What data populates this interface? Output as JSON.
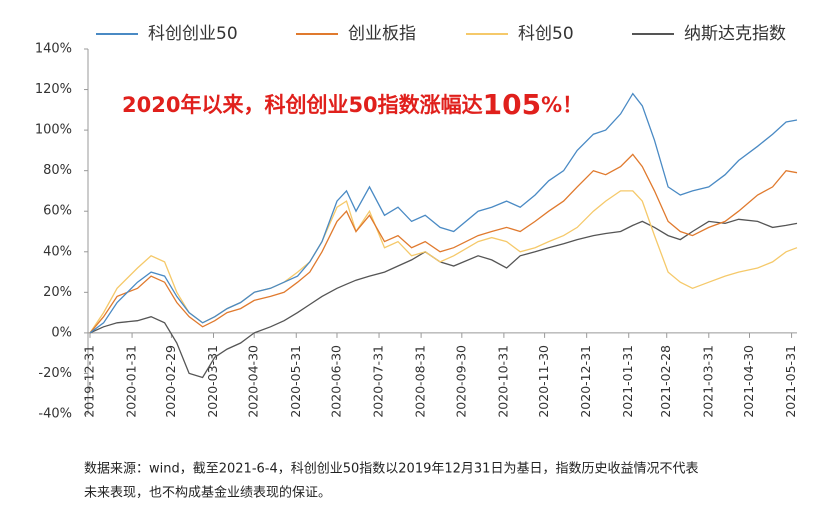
{
  "chart_data": {
    "type": "line",
    "legend_position": "top",
    "annotation": {
      "text": "2020年以来，科创创业50指数涨幅达",
      "highlight": "105",
      "suffix": "%！",
      "color": "#e0201c"
    },
    "footnote": [
      "数据来源：wind，截至2021-6-4，科创创业50指数以2019年12月31日为基日，指数历史收益情况不代表",
      "未来表现，也不构成基金业绩表现的保证。"
    ],
    "x": [
      "2019-12-31",
      "2020-01-10",
      "2020-01-20",
      "2020-02-04",
      "2020-02-14",
      "2020-02-24",
      "2020-03-04",
      "2020-03-13",
      "2020-03-23",
      "2020-04-01",
      "2020-04-10",
      "2020-04-20",
      "2020-04-30",
      "2020-05-12",
      "2020-05-22",
      "2020-06-01",
      "2020-06-10",
      "2020-06-19",
      "2020-06-30",
      "2020-07-07",
      "2020-07-14",
      "2020-07-24",
      "2020-08-04",
      "2020-08-14",
      "2020-08-24",
      "2020-09-03",
      "2020-09-14",
      "2020-09-24",
      "2020-10-12",
      "2020-10-22",
      "2020-11-02",
      "2020-11-12",
      "2020-11-23",
      "2020-12-03",
      "2020-12-14",
      "2020-12-24",
      "2021-01-05",
      "2021-01-14",
      "2021-01-25",
      "2021-02-03",
      "2021-02-10",
      "2021-02-19",
      "2021-03-01",
      "2021-03-10",
      "2021-03-19",
      "2021-03-31",
      "2021-04-12",
      "2021-04-22",
      "2021-05-06",
      "2021-05-17",
      "2021-05-27",
      "2021-06-04"
    ],
    "xlim": [
      "2019-12-31",
      "2021-06-04"
    ],
    "xticks": [
      "2019-12-31",
      "2020-01-31",
      "2020-02-29",
      "2020-03-31",
      "2020-04-30",
      "2020-05-31",
      "2020-06-30",
      "2020-07-31",
      "2020-08-31",
      "2020-09-30",
      "2020-10-31",
      "2020-11-30",
      "2020-12-31",
      "2021-01-31",
      "2021-02-28",
      "2021-03-31",
      "2021-04-30",
      "2021-05-31"
    ],
    "ylim": [
      -40,
      140
    ],
    "yticks": [
      {
        "value": -40,
        "label": "-40%"
      },
      {
        "value": -20,
        "label": "-20%"
      },
      {
        "value": 0,
        "label": "0%"
      },
      {
        "value": 20,
        "label": "20%"
      },
      {
        "value": 40,
        "label": "40%"
      },
      {
        "value": 60,
        "label": "60%"
      },
      {
        "value": 80,
        "label": "80%"
      },
      {
        "value": 100,
        "label": "100%"
      },
      {
        "value": 120,
        "label": "120%"
      },
      {
        "value": 140,
        "label": "140%"
      }
    ],
    "series": [
      {
        "name": "科创创业50",
        "color": "#4a8ac4",
        "values": [
          0,
          5,
          15,
          25,
          30,
          28,
          18,
          10,
          5,
          8,
          12,
          15,
          20,
          22,
          25,
          28,
          35,
          45,
          65,
          70,
          60,
          72,
          58,
          62,
          55,
          58,
          52,
          50,
          60,
          62,
          65,
          62,
          68,
          75,
          80,
          90,
          98,
          100,
          108,
          118,
          112,
          95,
          72,
          68,
          70,
          72,
          78,
          85,
          92,
          98,
          104,
          105
        ]
      },
      {
        "name": "创业板指",
        "color": "#e07a2e",
        "values": [
          0,
          8,
          18,
          22,
          28,
          25,
          15,
          8,
          3,
          6,
          10,
          12,
          16,
          18,
          20,
          25,
          30,
          40,
          55,
          60,
          50,
          58,
          45,
          48,
          42,
          45,
          40,
          42,
          48,
          50,
          52,
          50,
          55,
          60,
          65,
          72,
          80,
          78,
          82,
          88,
          82,
          70,
          55,
          50,
          48,
          52,
          55,
          60,
          68,
          72,
          80,
          79
        ]
      },
      {
        "name": "科创50",
        "color": "#f5c96a",
        "values": [
          0,
          10,
          22,
          32,
          38,
          35,
          20,
          10,
          5,
          8,
          12,
          15,
          20,
          22,
          25,
          30,
          35,
          45,
          62,
          65,
          50,
          60,
          42,
          45,
          38,
          40,
          35,
          38,
          45,
          47,
          45,
          40,
          42,
          45,
          48,
          52,
          60,
          65,
          70,
          70,
          65,
          48,
          30,
          25,
          22,
          25,
          28,
          30,
          32,
          35,
          40,
          42
        ]
      },
      {
        "name": "纳斯达克指数",
        "color": "#555555",
        "values": [
          0,
          3,
          5,
          6,
          8,
          5,
          -5,
          -20,
          -22,
          -12,
          -8,
          -5,
          0,
          3,
          6,
          10,
          14,
          18,
          22,
          24,
          26,
          28,
          30,
          33,
          36,
          40,
          35,
          33,
          38,
          36,
          32,
          38,
          40,
          42,
          44,
          46,
          48,
          49,
          50,
          53,
          55,
          52,
          48,
          46,
          50,
          55,
          54,
          56,
          55,
          52,
          53,
          54
        ]
      }
    ]
  }
}
